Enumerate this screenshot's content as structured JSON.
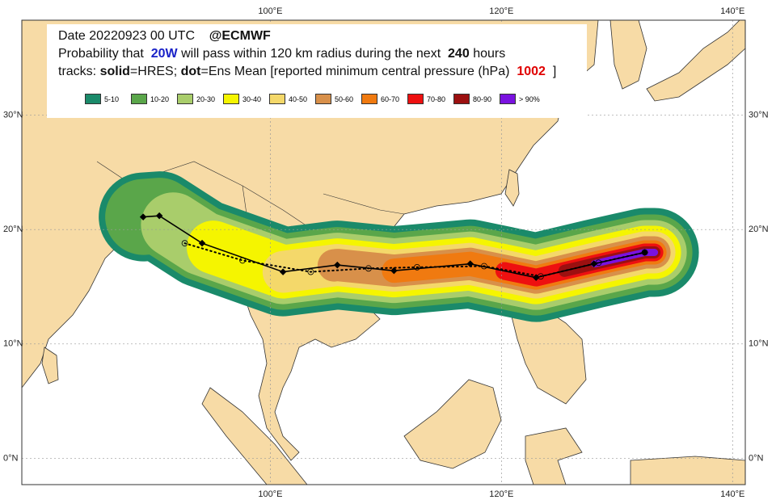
{
  "chart_data": {
    "type": "map",
    "header": {
      "date": "Date 20220923 00 UTC",
      "source": "@ECMWF",
      "line2": [
        "Probability that",
        "20W",
        "will pass within 120 km radius during the next",
        "240",
        "hours"
      ],
      "line3": [
        "tracks:",
        "solid",
        "=HRES;",
        "dot",
        "=Ens Mean [reported minimum central pressure (hPa)",
        "1002",
        "]"
      ]
    },
    "legend": [
      {
        "label": "5-10",
        "color": "#1a8a6a"
      },
      {
        "label": "10-20",
        "color": "#5aa64a"
      },
      {
        "label": "20-30",
        "color": "#a9cd6b"
      },
      {
        "label": "30-40",
        "color": "#f5f500"
      },
      {
        "label": "40-50",
        "color": "#f4d86a"
      },
      {
        "label": "50-60",
        "color": "#d8904a"
      },
      {
        "label": "60-70",
        "color": "#f07a10"
      },
      {
        "label": "70-80",
        "color": "#ee1010"
      },
      {
        "label": "80-90",
        "color": "#9c1010"
      },
      {
        "label": "> 90%",
        "color": "#7a12e0"
      }
    ],
    "xlim": [
      78.5,
      141.1
    ],
    "ylim": [
      -2.3,
      38.3
    ],
    "xticks": [
      {
        "value": 100,
        "label": "100°E"
      },
      {
        "value": 120,
        "label": "120°E"
      },
      {
        "value": 140,
        "label": "140°E"
      }
    ],
    "yticks": [
      {
        "value": 0,
        "label": "0°N"
      },
      {
        "value": 10,
        "label": "10°N"
      },
      {
        "value": 20,
        "label": "20°N"
      },
      {
        "value": 30,
        "label": "30°N"
      }
    ],
    "grid": true,
    "hres_track": {
      "lon": [
        89.0,
        90.4,
        94.1,
        101.1,
        105.8,
        110.7,
        117.3,
        123.0,
        128.0,
        132.4
      ],
      "lat": [
        21.1,
        21.2,
        18.8,
        16.3,
        16.9,
        16.4,
        17.0,
        15.8,
        17.0,
        18.0
      ]
    },
    "ens_track": {
      "lon": [
        92.6,
        97.6,
        103.5,
        108.5,
        112.7,
        118.5,
        123.4,
        128.4,
        132.4
      ],
      "lat": [
        18.8,
        17.3,
        16.3,
        16.6,
        16.7,
        16.8,
        15.9,
        17.1,
        18.0
      ]
    }
  }
}
